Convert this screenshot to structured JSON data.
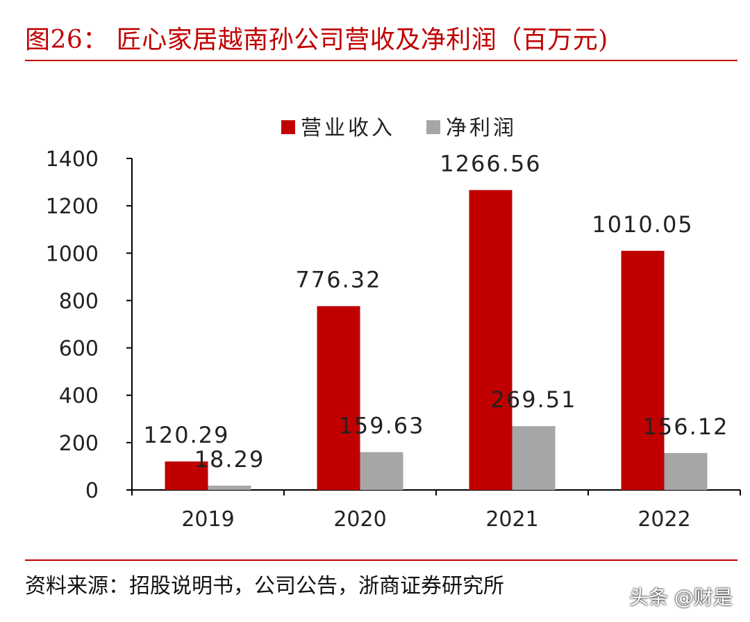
{
  "title": "图26： 匠心家居越南孙公司营收及净利润（百万元)",
  "source": "资料来源：招股说明书，公司公告，浙商证券研究所",
  "watermark": "头条 @财是",
  "colors": {
    "accent": "#c00000",
    "revenue": "#c00000",
    "profit": "#a6a6a6"
  },
  "chart_data": {
    "type": "bar",
    "categories": [
      "2019",
      "2020",
      "2021",
      "2022"
    ],
    "series": [
      {
        "name": "营业收入",
        "values": [
          120.29,
          776.32,
          1266.56,
          1010.05
        ],
        "labels": [
          "120.29",
          "776.32",
          "1266.56",
          "1010.05"
        ]
      },
      {
        "name": "净利润",
        "values": [
          18.29,
          159.63,
          269.51,
          156.12
        ],
        "labels": [
          "18.29",
          "159.63",
          "269.51",
          "156.12"
        ]
      }
    ],
    "yticks": [
      "0",
      "200",
      "400",
      "600",
      "800",
      "1000",
      "1200",
      "1400"
    ],
    "ylim": [
      0,
      1400
    ],
    "legend_position": "top",
    "grid": false
  }
}
